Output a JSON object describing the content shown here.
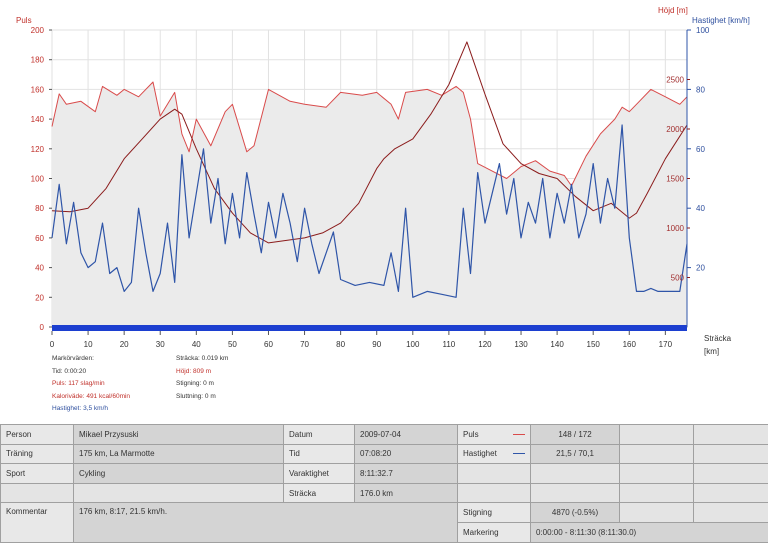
{
  "chart_data": {
    "type": "line",
    "left_axis_label": "Puls",
    "right_axis_label_1": "Höjd [m]",
    "right_axis_label_2": "Hastighet [km/h]",
    "x_axis_label": "Sträcka",
    "x_axis_unit": "[km]",
    "x_range": [
      0,
      176
    ],
    "x_ticks": [
      0,
      10,
      20,
      30,
      40,
      50,
      60,
      70,
      80,
      90,
      100,
      110,
      120,
      130,
      140,
      150,
      160,
      170
    ],
    "puls_axis": {
      "range": [
        0,
        200
      ],
      "ticks": [
        0,
        20,
        40,
        60,
        80,
        100,
        120,
        140,
        160,
        180,
        200
      ]
    },
    "hojd_axis": {
      "range": [
        0,
        3000
      ],
      "ticks": [
        500,
        1000,
        1500,
        2000,
        2500
      ]
    },
    "hastighet_axis": {
      "range": [
        0,
        100
      ],
      "ticks": [
        20,
        40,
        60,
        80,
        100
      ]
    },
    "grid": true,
    "series": [
      {
        "name": "Puls",
        "color": "#d94b4b",
        "axis": "puls",
        "fill": "#ebebeb",
        "x": [
          0,
          2,
          4,
          8,
          12,
          14,
          18,
          20,
          24,
          28,
          30,
          34,
          36,
          38,
          40,
          44,
          48,
          50,
          54,
          56,
          60,
          66,
          70,
          76,
          80,
          86,
          90,
          94,
          96,
          98,
          104,
          108,
          112,
          114,
          116,
          118,
          122,
          126,
          130,
          134,
          138,
          142,
          144,
          148,
          152,
          156,
          158,
          160,
          162,
          166,
          170,
          174,
          176
        ],
        "y": [
          135,
          157,
          150,
          152,
          145,
          162,
          156,
          160,
          155,
          165,
          142,
          158,
          130,
          118,
          140,
          122,
          145,
          150,
          118,
          122,
          160,
          152,
          150,
          148,
          158,
          156,
          158,
          150,
          140,
          158,
          160,
          156,
          162,
          158,
          140,
          110,
          105,
          100,
          108,
          112,
          105,
          102,
          95,
          115,
          130,
          140,
          148,
          145,
          150,
          160,
          155,
          150,
          155
        ]
      },
      {
        "name": "Höjd",
        "color": "#8b1c1c",
        "axis": "hojd",
        "fill": "none",
        "x": [
          0,
          5,
          10,
          15,
          20,
          25,
          30,
          34,
          36,
          40,
          45,
          50,
          55,
          60,
          65,
          70,
          75,
          80,
          85,
          90,
          92,
          95,
          100,
          105,
          110,
          115,
          120,
          125,
          130,
          135,
          140,
          145,
          150,
          155,
          160,
          162,
          165,
          170,
          176
        ],
        "y": [
          1175,
          1165,
          1200,
          1400,
          1700,
          1900,
          2100,
          2200,
          2150,
          1800,
          1400,
          1150,
          950,
          850,
          875,
          900,
          950,
          1050,
          1250,
          1600,
          1700,
          1800,
          1900,
          2150,
          2450,
          2880,
          2350,
          1850,
          1650,
          1550,
          1500,
          1320,
          1175,
          1250,
          1100,
          1150,
          1350,
          1700,
          2040
        ]
      },
      {
        "name": "Hastighet",
        "color": "#2f55a8",
        "axis": "hastighet",
        "fill": "none",
        "x": [
          0,
          2,
          4,
          6,
          8,
          10,
          12,
          14,
          16,
          18,
          20,
          22,
          24,
          26,
          28,
          30,
          32,
          34,
          36,
          38,
          40,
          42,
          44,
          46,
          48,
          50,
          52,
          54,
          56,
          58,
          60,
          62,
          64,
          66,
          68,
          70,
          72,
          74,
          76,
          78,
          80,
          84,
          88,
          92,
          94,
          96,
          98,
          100,
          104,
          108,
          112,
          114,
          116,
          118,
          120,
          122,
          124,
          126,
          128,
          130,
          132,
          134,
          136,
          138,
          140,
          142,
          144,
          146,
          148,
          150,
          152,
          154,
          156,
          158,
          160,
          162,
          164,
          166,
          168,
          170,
          172,
          174,
          176
        ],
        "y": [
          30,
          48,
          28,
          42,
          25,
          20,
          22,
          35,
          18,
          20,
          12,
          15,
          40,
          25,
          12,
          18,
          35,
          15,
          58,
          30,
          45,
          60,
          35,
          50,
          28,
          45,
          30,
          52,
          38,
          25,
          42,
          30,
          45,
          35,
          22,
          40,
          28,
          18,
          25,
          32,
          16,
          14,
          15,
          14,
          25,
          12,
          40,
          10,
          12,
          11,
          10,
          40,
          18,
          52,
          35,
          45,
          55,
          38,
          50,
          30,
          42,
          35,
          50,
          30,
          45,
          35,
          48,
          30,
          38,
          55,
          35,
          50,
          40,
          68,
          30,
          12,
          12,
          13,
          12,
          12,
          12,
          12,
          28
        ]
      }
    ]
  },
  "readout": {
    "header": "Markörvärden:",
    "tid": "Tid: 0:00:20",
    "puls": "Puls: 117 slag/min",
    "kalori": "Kaloriväde: 491 kcal/60min",
    "hastighet": "Hastighet: 3,5 km/h",
    "stracka": "Sträcka: 0.019 km",
    "hojd": "Höjd: 809 m",
    "stigning": "Stigning: 0 m",
    "sluttning": "Sluttning: 0 m"
  },
  "info": {
    "person_label": "Person",
    "person_value": "Mikael Przysuski",
    "traning_label": "Träning",
    "traning_value": "175 km, La Marmotte",
    "sport_label": "Sport",
    "sport_value": "Cykling",
    "kommentar_label": "Kommentar",
    "kommentar_value": "176 km, 8:17, 21.5 km/h.",
    "datum_label": "Datum",
    "datum_value": "2009-07-04",
    "tid_label": "Tid",
    "tid_value": "07:08:20",
    "varaktighet_label": "Varaktighet",
    "varaktighet_value": "8:11:32.7",
    "stracka_label": "Sträcka",
    "stracka_value": "176.0 km",
    "puls_label": "Puls",
    "puls_value": "148 / 172",
    "hastighet_label": "Hastighet",
    "hastighet_value": "21,5 / 70,1",
    "stigning_label": "Stigning",
    "stigning_value": "4870 (-0.5%)",
    "markering_label": "Markering",
    "markering_value": "0:00:00 - 8:11:30 (8:11:30.0)"
  }
}
